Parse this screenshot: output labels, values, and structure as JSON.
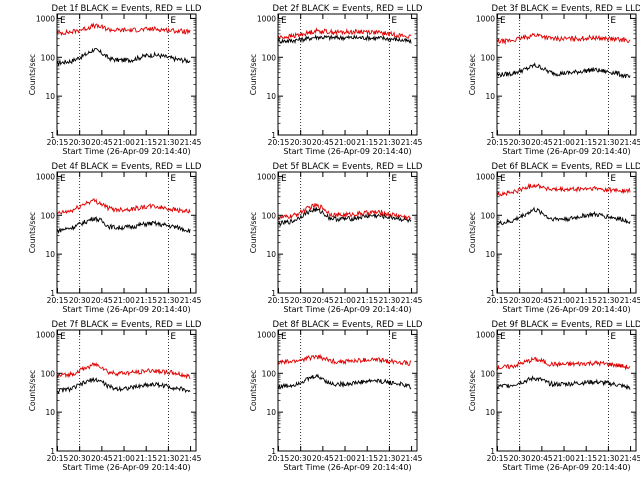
{
  "colors": {
    "events": "#000000",
    "lld": "#e00000",
    "axis": "#000000",
    "background": "#ffffff"
  },
  "common": {
    "y_label": "Counts/sec",
    "x_label": "Start Time (26-Apr-09 20:14:40)",
    "x_ticks": [
      "20:15",
      "20:30",
      "20:45",
      "21:00",
      "21:15",
      "21:30",
      "21:45"
    ],
    "y_ticks": [
      "1",
      "10",
      "100",
      "1000"
    ],
    "marker_letter": "E"
  },
  "chart_data": [
    {
      "type": "line",
      "title": "Det 1f BLACK = Events, RED = LLD",
      "y_scale": "log",
      "ylim": [
        1,
        1300
      ],
      "x_range_min": [
        0,
        94
      ],
      "series": [
        {
          "name": "Events",
          "color": "#000000",
          "x": [
            0,
            10,
            20,
            25,
            30,
            35,
            40,
            50,
            60,
            65,
            70,
            80,
            90
          ],
          "y": [
            70,
            80,
            120,
            160,
            130,
            95,
            85,
            85,
            110,
            115,
            110,
            90,
            80
          ]
        },
        {
          "name": "LLD",
          "color": "#e00000",
          "x": [
            0,
            10,
            20,
            25,
            30,
            35,
            40,
            50,
            60,
            65,
            70,
            80,
            90
          ],
          "y": [
            420,
            450,
            560,
            650,
            600,
            520,
            500,
            500,
            520,
            540,
            520,
            480,
            450
          ]
        }
      ]
    },
    {
      "type": "line",
      "title": "Det 2f BLACK = Events, RED = LLD",
      "y_scale": "log",
      "ylim": [
        1,
        1300
      ],
      "x_range_min": [
        0,
        94
      ],
      "series": [
        {
          "name": "Events",
          "color": "#000000",
          "x": [
            0,
            10,
            20,
            25,
            30,
            35,
            40,
            50,
            60,
            65,
            70,
            80,
            90
          ],
          "y": [
            260,
            270,
            300,
            330,
            330,
            320,
            320,
            320,
            320,
            310,
            310,
            290,
            250
          ]
        },
        {
          "name": "LLD",
          "color": "#e00000",
          "x": [
            0,
            10,
            20,
            25,
            30,
            35,
            40,
            50,
            60,
            65,
            70,
            80,
            90
          ],
          "y": [
            320,
            350,
            420,
            480,
            470,
            450,
            440,
            450,
            460,
            440,
            420,
            380,
            330
          ]
        }
      ]
    },
    {
      "type": "line",
      "title": "Det 3f BLACK = Events, RED = LLD",
      "y_scale": "log",
      "ylim": [
        1,
        1300
      ],
      "x_range_min": [
        0,
        94
      ],
      "series": [
        {
          "name": "Events",
          "color": "#000000",
          "x": [
            0,
            10,
            20,
            25,
            30,
            35,
            40,
            50,
            60,
            65,
            70,
            80,
            90
          ],
          "y": [
            35,
            38,
            50,
            62,
            55,
            42,
            38,
            40,
            45,
            48,
            45,
            40,
            30
          ]
        },
        {
          "name": "LLD",
          "color": "#e00000",
          "x": [
            0,
            10,
            20,
            25,
            30,
            35,
            40,
            50,
            60,
            65,
            70,
            80,
            90
          ],
          "y": [
            250,
            270,
            330,
            380,
            360,
            310,
            300,
            300,
            310,
            320,
            310,
            290,
            270
          ]
        }
      ]
    },
    {
      "type": "line",
      "title": "Det 4f BLACK = Events, RED = LLD",
      "y_scale": "log",
      "ylim": [
        1,
        1300
      ],
      "x_range_min": [
        0,
        94
      ],
      "series": [
        {
          "name": "Events",
          "color": "#000000",
          "x": [
            0,
            10,
            20,
            25,
            30,
            35,
            40,
            50,
            60,
            65,
            70,
            80,
            90
          ],
          "y": [
            40,
            48,
            70,
            85,
            72,
            52,
            48,
            50,
            60,
            62,
            58,
            50,
            40
          ]
        },
        {
          "name": "LLD",
          "color": "#e00000",
          "x": [
            0,
            10,
            20,
            25,
            30,
            35,
            40,
            50,
            60,
            65,
            70,
            80,
            90
          ],
          "y": [
            110,
            130,
            210,
            240,
            200,
            150,
            140,
            145,
            165,
            170,
            160,
            140,
            120
          ]
        }
      ]
    },
    {
      "type": "line",
      "title": "Det 5f BLACK = Events, RED = LLD",
      "y_scale": "log",
      "ylim": [
        1,
        1300
      ],
      "x_range_min": [
        0,
        94
      ],
      "series": [
        {
          "name": "Events",
          "color": "#000000",
          "x": [
            0,
            10,
            20,
            25,
            30,
            35,
            40,
            50,
            60,
            65,
            70,
            80,
            90
          ],
          "y": [
            60,
            70,
            120,
            140,
            120,
            85,
            80,
            82,
            95,
            98,
            95,
            85,
            70
          ]
        },
        {
          "name": "LLD",
          "color": "#e00000",
          "x": [
            0,
            10,
            20,
            25,
            30,
            35,
            40,
            50,
            60,
            65,
            70,
            80,
            90
          ],
          "y": [
            85,
            95,
            150,
            180,
            160,
            110,
            100,
            105,
            115,
            120,
            115,
            100,
            85
          ]
        }
      ]
    },
    {
      "type": "line",
      "title": "Det 6f BLACK = Events, RED = LLD",
      "y_scale": "log",
      "ylim": [
        1,
        1300
      ],
      "x_range_min": [
        0,
        94
      ],
      "series": [
        {
          "name": "Events",
          "color": "#000000",
          "x": [
            0,
            10,
            20,
            25,
            30,
            35,
            40,
            50,
            60,
            65,
            70,
            80,
            90
          ],
          "y": [
            60,
            70,
            110,
            140,
            120,
            85,
            80,
            82,
            100,
            105,
            100,
            85,
            70
          ]
        },
        {
          "name": "LLD",
          "color": "#e00000",
          "x": [
            0,
            10,
            20,
            25,
            30,
            35,
            40,
            50,
            60,
            65,
            70,
            80,
            90
          ],
          "y": [
            350,
            380,
            520,
            600,
            560,
            470,
            450,
            460,
            480,
            490,
            470,
            440,
            420
          ]
        }
      ]
    },
    {
      "type": "line",
      "title": "Det 7f BLACK = Events, RED = LLD",
      "y_scale": "log",
      "ylim": [
        1,
        1300
      ],
      "x_range_min": [
        0,
        94
      ],
      "series": [
        {
          "name": "Events",
          "color": "#000000",
          "x": [
            0,
            10,
            20,
            25,
            30,
            35,
            40,
            50,
            60,
            65,
            70,
            80,
            90
          ],
          "y": [
            35,
            40,
            60,
            70,
            62,
            45,
            40,
            42,
            50,
            52,
            50,
            42,
            35
          ]
        },
        {
          "name": "LLD",
          "color": "#e00000",
          "x": [
            0,
            10,
            20,
            25,
            30,
            35,
            40,
            50,
            60,
            65,
            70,
            80,
            90
          ],
          "y": [
            85,
            95,
            140,
            170,
            150,
            105,
            100,
            102,
            115,
            118,
            112,
            100,
            80
          ]
        }
      ]
    },
    {
      "type": "line",
      "title": "Det 8f BLACK = Events, RED = LLD",
      "y_scale": "log",
      "ylim": [
        1,
        1300
      ],
      "x_range_min": [
        0,
        94
      ],
      "series": [
        {
          "name": "Events",
          "color": "#000000",
          "x": [
            0,
            10,
            20,
            25,
            30,
            35,
            40,
            50,
            60,
            65,
            70,
            80,
            90
          ],
          "y": [
            45,
            50,
            70,
            85,
            75,
            55,
            52,
            55,
            62,
            65,
            62,
            55,
            45
          ]
        },
        {
          "name": "LLD",
          "color": "#e00000",
          "x": [
            0,
            10,
            20,
            25,
            30,
            35,
            40,
            50,
            60,
            65,
            70,
            80,
            90
          ],
          "y": [
            190,
            200,
            240,
            270,
            250,
            210,
            200,
            205,
            220,
            225,
            215,
            200,
            180
          ]
        }
      ]
    },
    {
      "type": "line",
      "title": "Det 9f BLACK = Events, RED = LLD",
      "y_scale": "log",
      "ylim": [
        1,
        1300
      ],
      "x_range_min": [
        0,
        94
      ],
      "series": [
        {
          "name": "Events",
          "color": "#000000",
          "x": [
            0,
            10,
            20,
            25,
            30,
            35,
            40,
            50,
            60,
            65,
            70,
            80,
            90
          ],
          "y": [
            45,
            50,
            65,
            75,
            68,
            55,
            52,
            54,
            58,
            60,
            58,
            52,
            42
          ]
        },
        {
          "name": "LLD",
          "color": "#e00000",
          "x": [
            0,
            10,
            20,
            25,
            30,
            35,
            40,
            50,
            60,
            65,
            70,
            80,
            90
          ],
          "y": [
            140,
            150,
            200,
            230,
            210,
            175,
            170,
            172,
            180,
            185,
            180,
            165,
            140
          ]
        }
      ]
    }
  ]
}
